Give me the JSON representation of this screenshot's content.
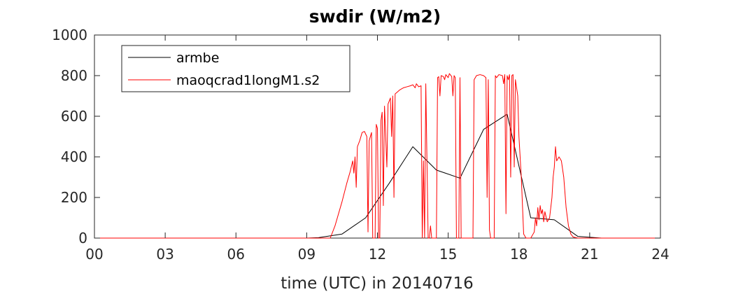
{
  "chart_data": {
    "type": "line",
    "title": "swdir  (W/m2)",
    "xlabel": "time (UTC) in 20140716",
    "ylabel": "",
    "xlim": [
      0,
      24
    ],
    "ylim": [
      0,
      1000
    ],
    "x_ticks": [
      0,
      3,
      6,
      9,
      12,
      15,
      18,
      21,
      24
    ],
    "x_tick_labels": [
      "00",
      "03",
      "06",
      "09",
      "12",
      "15",
      "18",
      "21",
      "24"
    ],
    "y_ticks": [
      0,
      200,
      400,
      600,
      800,
      1000
    ],
    "y_tick_labels": [
      "0",
      "200",
      "400",
      "600",
      "800",
      "1000"
    ],
    "grid": false,
    "legend_position": "top-left",
    "series": [
      {
        "name": "armbe",
        "color": "#000000",
        "points": [
          [
            0,
            0
          ],
          [
            1,
            0
          ],
          [
            2,
            0
          ],
          [
            3,
            0
          ],
          [
            4,
            0
          ],
          [
            5,
            0
          ],
          [
            6,
            0
          ],
          [
            7,
            0
          ],
          [
            8,
            0
          ],
          [
            9,
            0
          ],
          [
            9.5,
            2
          ],
          [
            10.5,
            20
          ],
          [
            11.5,
            100
          ],
          [
            12.5,
            270
          ],
          [
            13.5,
            450
          ],
          [
            14.5,
            335
          ],
          [
            15.5,
            295
          ],
          [
            16.5,
            535
          ],
          [
            17.5,
            610
          ],
          [
            18.5,
            100
          ],
          [
            19.5,
            90
          ],
          [
            20.5,
            8
          ],
          [
            21.5,
            0
          ],
          [
            22.5,
            0
          ],
          [
            23.5,
            0
          ],
          [
            24,
            0
          ]
        ]
      },
      {
        "name": "maoqcrad1longM1.s2",
        "color": "#ff0000",
        "points": [
          [
            0,
            0
          ],
          [
            10.0,
            0
          ],
          [
            10.2,
            60
          ],
          [
            10.5,
            180
          ],
          [
            10.7,
            270
          ],
          [
            10.85,
            330
          ],
          [
            10.95,
            380
          ],
          [
            11.0,
            320
          ],
          [
            11.05,
            400
          ],
          [
            11.1,
            250
          ],
          [
            11.15,
            450
          ],
          [
            11.25,
            480
          ],
          [
            11.35,
            520
          ],
          [
            11.45,
            525
          ],
          [
            11.55,
            500
          ],
          [
            11.6,
            30
          ],
          [
            11.65,
            480
          ],
          [
            11.75,
            520
          ],
          [
            11.8,
            0
          ],
          [
            11.9,
            0
          ],
          [
            11.95,
            560
          ],
          [
            12.0,
            540
          ],
          [
            12.05,
            0
          ],
          [
            12.1,
            0
          ],
          [
            12.15,
            580
          ],
          [
            12.2,
            620
          ],
          [
            12.25,
            160
          ],
          [
            12.3,
            650
          ],
          [
            12.4,
            350
          ],
          [
            12.45,
            660
          ],
          [
            12.55,
            690
          ],
          [
            12.6,
            500
          ],
          [
            12.65,
            700
          ],
          [
            12.7,
            200
          ],
          [
            12.75,
            710
          ],
          [
            12.85,
            720
          ],
          [
            12.95,
            730
          ],
          [
            13.1,
            740
          ],
          [
            13.25,
            745
          ],
          [
            13.4,
            750
          ],
          [
            13.5,
            755
          ],
          [
            13.6,
            740
          ],
          [
            13.65,
            760
          ],
          [
            13.75,
            745
          ],
          [
            13.85,
            750
          ],
          [
            13.9,
            0
          ],
          [
            13.95,
            380
          ],
          [
            14.0,
            0
          ],
          [
            14.05,
            760
          ],
          [
            14.15,
            0
          ],
          [
            14.2,
            0
          ],
          [
            14.25,
            60
          ],
          [
            14.3,
            0
          ],
          [
            14.5,
            0
          ],
          [
            14.55,
            790
          ],
          [
            14.6,
            795
          ],
          [
            14.65,
            700
          ],
          [
            14.7,
            800
          ],
          [
            14.8,
            795
          ],
          [
            14.85,
            780
          ],
          [
            14.9,
            805
          ],
          [
            15.0,
            790
          ],
          [
            15.05,
            810
          ],
          [
            15.15,
            795
          ],
          [
            15.2,
            700
          ],
          [
            15.25,
            800
          ],
          [
            15.3,
            790
          ],
          [
            15.35,
            0
          ],
          [
            15.45,
            0
          ],
          [
            15.5,
            790
          ],
          [
            15.55,
            0
          ],
          [
            15.6,
            0
          ],
          [
            15.85,
            0
          ],
          [
            15.95,
            0
          ],
          [
            16.05,
            0
          ],
          [
            16.1,
            780
          ],
          [
            16.2,
            800
          ],
          [
            16.35,
            805
          ],
          [
            16.5,
            800
          ],
          [
            16.6,
            790
          ],
          [
            16.65,
            200
          ],
          [
            16.7,
            780
          ],
          [
            16.75,
            40
          ],
          [
            16.8,
            0
          ],
          [
            16.95,
            0
          ],
          [
            17.0,
            800
          ],
          [
            17.05,
            790
          ],
          [
            17.15,
            805
          ],
          [
            17.3,
            800
          ],
          [
            17.35,
            760
          ],
          [
            17.4,
            805
          ],
          [
            17.45,
            120
          ],
          [
            17.5,
            800
          ],
          [
            17.55,
            780
          ],
          [
            17.6,
            805
          ],
          [
            17.65,
            300
          ],
          [
            17.7,
            800
          ],
          [
            17.75,
            805
          ],
          [
            17.8,
            350
          ],
          [
            17.85,
            780
          ],
          [
            17.95,
            700
          ],
          [
            18.0,
            500
          ],
          [
            18.1,
            300
          ],
          [
            18.2,
            20
          ],
          [
            18.3,
            0
          ],
          [
            18.5,
            0
          ],
          [
            18.65,
            30
          ],
          [
            18.7,
            100
          ],
          [
            18.75,
            60
          ],
          [
            18.8,
            150
          ],
          [
            18.85,
            90
          ],
          [
            18.9,
            160
          ],
          [
            18.95,
            120
          ],
          [
            19.0,
            140
          ],
          [
            19.05,
            80
          ],
          [
            19.1,
            130
          ],
          [
            19.2,
            80
          ],
          [
            19.3,
            100
          ],
          [
            19.4,
            200
          ],
          [
            19.45,
            300
          ],
          [
            19.5,
            350
          ],
          [
            19.55,
            450
          ],
          [
            19.6,
            380
          ],
          [
            19.7,
            400
          ],
          [
            19.8,
            380
          ],
          [
            19.9,
            300
          ],
          [
            20.0,
            150
          ],
          [
            20.1,
            60
          ],
          [
            20.2,
            20
          ],
          [
            20.3,
            5
          ],
          [
            20.5,
            0
          ],
          [
            24,
            0
          ]
        ]
      }
    ]
  }
}
